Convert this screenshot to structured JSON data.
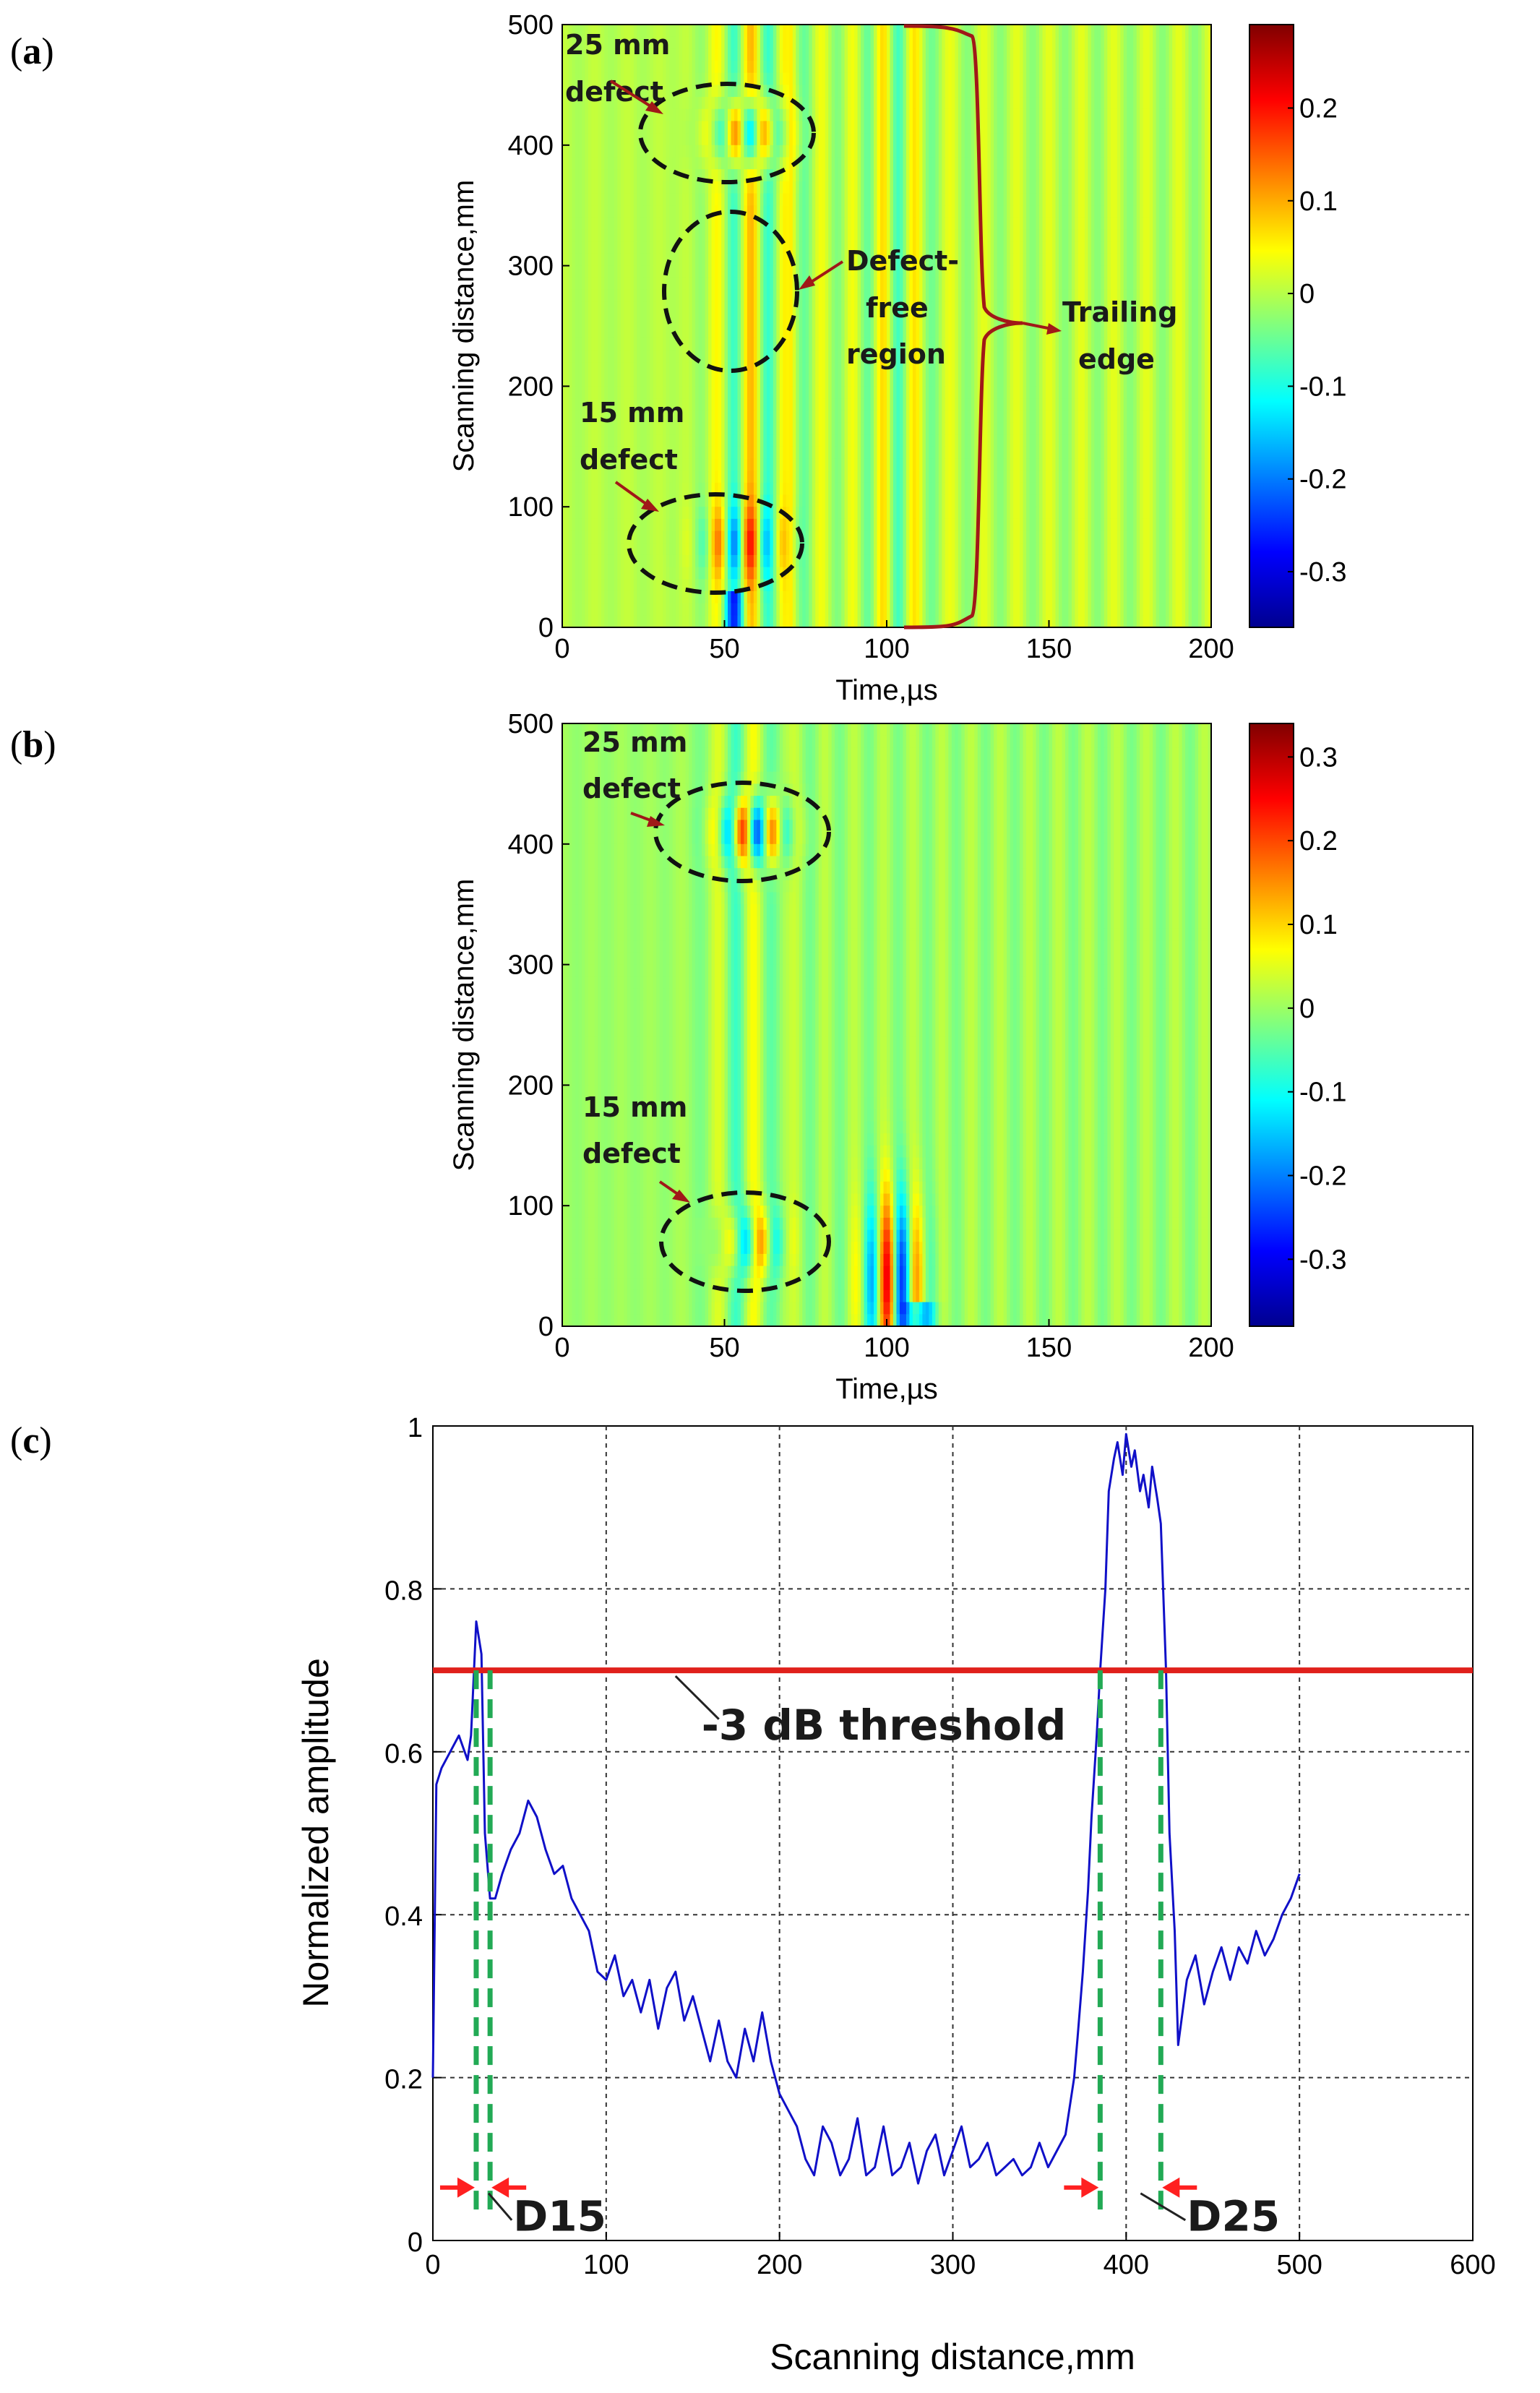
{
  "chart_data": [
    {
      "type": "heatmap",
      "panel_label": "(a)",
      "xlabel": "Time,µs",
      "ylabel": "Scanning distance,mm",
      "xlim": [
        0,
        200
      ],
      "ylim": [
        0,
        500
      ],
      "x_ticks": [
        "0",
        "50",
        "100",
        "150",
        "200"
      ],
      "y_ticks": [
        "0",
        "100",
        "200",
        "300",
        "400",
        "500"
      ],
      "colorbar": {
        "min": -0.36,
        "max": 0.29,
        "ticks": [
          "0.2",
          "0.1",
          "0",
          "-0.1",
          "-0.2",
          "-0.3"
        ]
      },
      "annotations": [
        {
          "text_lines": [
            "25 mm",
            "defect"
          ],
          "center_x": 50,
          "center_y": 410
        },
        {
          "text_lines": [
            "Defect-",
            "free",
            "region"
          ],
          "center_x": 50,
          "center_y": 280
        },
        {
          "text_lines": [
            "15 mm",
            "defect"
          ],
          "center_x": 42,
          "center_y": 70
        },
        {
          "text_lines": [
            "Trailing",
            "edge"
          ],
          "x_range": [
            105,
            130
          ],
          "y_range": [
            0,
            500
          ]
        }
      ]
    },
    {
      "type": "heatmap",
      "panel_label": "(b)",
      "xlabel": "Time,µs",
      "ylabel": "Scanning distance,mm",
      "xlim": [
        0,
        200
      ],
      "ylim": [
        0,
        500
      ],
      "x_ticks": [
        "0",
        "50",
        "100",
        "150",
        "200"
      ],
      "y_ticks": [
        "0",
        "100",
        "200",
        "300",
        "400",
        "500"
      ],
      "colorbar": {
        "min": -0.38,
        "max": 0.34,
        "ticks": [
          "0.3",
          "0.2",
          "0.1",
          "0",
          "-0.1",
          "-0.2",
          "-0.3"
        ]
      },
      "annotations": [
        {
          "text_lines": [
            "25 mm",
            "defect"
          ],
          "center_x": 55,
          "center_y": 410
        },
        {
          "text_lines": [
            "15 mm",
            "defect"
          ],
          "center_x": 55,
          "center_y": 70
        }
      ]
    },
    {
      "type": "line",
      "panel_label": "(c)",
      "xlabel": "Scanning distance,mm",
      "ylabel": "Normalized amplitude",
      "xlim": [
        0,
        600
      ],
      "ylim": [
        0,
        1
      ],
      "x_ticks": [
        "0",
        "100",
        "200",
        "300",
        "400",
        "500",
        "600"
      ],
      "y_ticks": [
        "0",
        "0.2",
        "0.4",
        "0.6",
        "0.8",
        "1"
      ],
      "grid": true,
      "threshold": {
        "value": 0.7,
        "label": "-3 dB threshold",
        "color": "#e0201b"
      },
      "series": [
        {
          "name": "Normalized amplitude",
          "color": "#1010c8",
          "x": [
            0,
            2,
            5,
            10,
            15,
            20,
            22,
            25,
            28,
            30,
            33,
            36,
            40,
            45,
            50,
            55,
            60,
            65,
            70,
            75,
            80,
            85,
            90,
            95,
            100,
            105,
            110,
            115,
            120,
            125,
            130,
            135,
            140,
            145,
            150,
            155,
            160,
            165,
            170,
            175,
            180,
            185,
            190,
            195,
            200,
            205,
            210,
            215,
            220,
            225,
            230,
            235,
            240,
            245,
            250,
            255,
            260,
            265,
            270,
            275,
            280,
            285,
            290,
            295,
            300,
            305,
            310,
            315,
            320,
            325,
            330,
            335,
            340,
            345,
            350,
            355,
            360,
            365,
            370,
            372,
            375,
            378,
            380,
            383,
            385,
            388,
            390,
            393,
            395,
            398,
            400,
            403,
            405,
            408,
            410,
            413,
            415,
            418,
            420,
            423,
            425,
            428,
            430,
            435,
            440,
            445,
            450,
            455,
            460,
            465,
            470,
            475,
            480,
            485,
            490,
            495,
            500
          ],
          "y": [
            0.2,
            0.56,
            0.58,
            0.6,
            0.62,
            0.59,
            0.62,
            0.76,
            0.72,
            0.5,
            0.42,
            0.42,
            0.45,
            0.48,
            0.5,
            0.54,
            0.52,
            0.48,
            0.45,
            0.46,
            0.42,
            0.4,
            0.38,
            0.33,
            0.32,
            0.35,
            0.3,
            0.32,
            0.28,
            0.32,
            0.26,
            0.31,
            0.33,
            0.27,
            0.3,
            0.26,
            0.22,
            0.27,
            0.22,
            0.2,
            0.26,
            0.22,
            0.28,
            0.22,
            0.18,
            0.16,
            0.14,
            0.1,
            0.08,
            0.14,
            0.12,
            0.08,
            0.1,
            0.15,
            0.08,
            0.09,
            0.14,
            0.08,
            0.09,
            0.12,
            0.07,
            0.11,
            0.13,
            0.08,
            0.11,
            0.14,
            0.09,
            0.1,
            0.12,
            0.08,
            0.09,
            0.1,
            0.08,
            0.09,
            0.12,
            0.09,
            0.11,
            0.13,
            0.2,
            0.25,
            0.33,
            0.43,
            0.52,
            0.62,
            0.7,
            0.8,
            0.92,
            0.96,
            0.98,
            0.94,
            0.99,
            0.95,
            0.97,
            0.92,
            0.94,
            0.9,
            0.95,
            0.91,
            0.88,
            0.7,
            0.5,
            0.38,
            0.24,
            0.32,
            0.35,
            0.29,
            0.33,
            0.36,
            0.32,
            0.36,
            0.34,
            0.38,
            0.35,
            0.37,
            0.4,
            0.42,
            0.45
          ]
        }
      ],
      "markers": [
        {
          "label": "D15",
          "x_range": [
            25,
            33
          ]
        },
        {
          "label": "D25",
          "x_range": [
            385,
            420
          ]
        }
      ]
    }
  ]
}
